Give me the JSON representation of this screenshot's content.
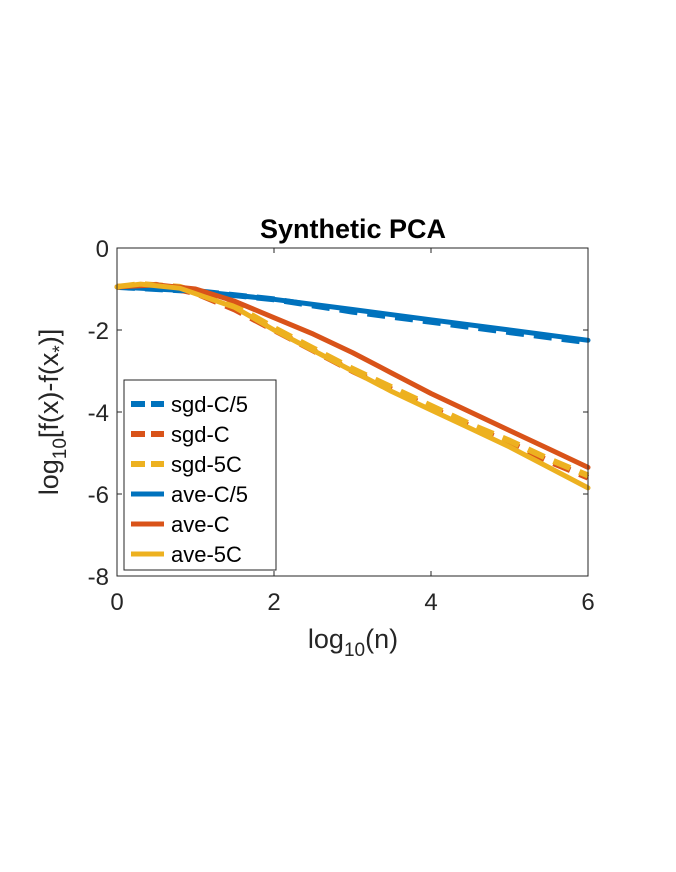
{
  "chart_data": {
    "type": "line",
    "title": "Synthetic PCA",
    "xlabel": {
      "base": "log",
      "sub": "10",
      "rest": "(n)"
    },
    "ylabel": {
      "base": "log",
      "sub": "10",
      "rest": "[f(x)-f(x",
      "sub2": "*",
      "end": ")]"
    },
    "xlim": [
      0,
      6
    ],
    "ylim": [
      -8,
      0
    ],
    "xticks": [
      0,
      2,
      4,
      6
    ],
    "yticks": [
      0,
      -2,
      -4,
      -6,
      -8
    ],
    "grid": false,
    "legend_position": "bottom-left",
    "colors": {
      "blue": "#0072BD",
      "orange": "#D95319",
      "yellow": "#EDB120"
    },
    "series": [
      {
        "name": "sgd-C/5",
        "color": "#0072BD",
        "style": "dashed",
        "x": [
          0,
          1,
          2,
          3,
          4,
          5,
          6
        ],
        "y": [
          -0.95,
          -1.05,
          -1.25,
          -1.55,
          -1.8,
          -2.05,
          -2.3
        ]
      },
      {
        "name": "sgd-C",
        "color": "#D95319",
        "style": "dashed",
        "x": [
          0,
          0.5,
          1,
          1.5,
          2,
          2.5,
          3,
          3.5,
          4,
          4.5,
          5,
          5.5,
          6
        ],
        "y": [
          -0.95,
          -0.9,
          -1.1,
          -1.5,
          -2.0,
          -2.5,
          -3.0,
          -3.45,
          -3.9,
          -4.35,
          -4.75,
          -5.2,
          -5.6
        ]
      },
      {
        "name": "sgd-5C",
        "color": "#EDB120",
        "style": "dashed",
        "x": [
          0,
          0.3,
          0.8,
          1.5,
          2,
          2.5,
          3,
          3.5,
          4,
          4.5,
          5,
          5.5,
          6
        ],
        "y": [
          -0.95,
          -0.88,
          -0.95,
          -1.4,
          -1.95,
          -2.45,
          -2.95,
          -3.4,
          -3.85,
          -4.3,
          -4.7,
          -5.15,
          -5.55
        ]
      },
      {
        "name": "ave-C/5",
        "color": "#0072BD",
        "style": "solid",
        "x": [
          0,
          1,
          2,
          3,
          4,
          5,
          6
        ],
        "y": [
          -0.95,
          -1.05,
          -1.25,
          -1.5,
          -1.75,
          -2.0,
          -2.25
        ]
      },
      {
        "name": "ave-C",
        "color": "#D95319",
        "style": "solid",
        "x": [
          0,
          0.5,
          1,
          1.5,
          2,
          2.5,
          3,
          3.5,
          4,
          4.5,
          5,
          5.5,
          6
        ],
        "y": [
          -0.95,
          -0.9,
          -1.0,
          -1.3,
          -1.7,
          -2.1,
          -2.55,
          -3.05,
          -3.55,
          -4.0,
          -4.45,
          -4.9,
          -5.35
        ]
      },
      {
        "name": "ave-5C",
        "color": "#EDB120",
        "style": "solid",
        "x": [
          0,
          0.3,
          0.8,
          1.5,
          2,
          2.5,
          3,
          3.5,
          4,
          4.5,
          5,
          5.5,
          6
        ],
        "y": [
          -0.95,
          -0.88,
          -0.98,
          -1.45,
          -2.0,
          -2.5,
          -3.0,
          -3.5,
          -3.95,
          -4.4,
          -4.85,
          -5.35,
          -5.85
        ]
      }
    ]
  }
}
